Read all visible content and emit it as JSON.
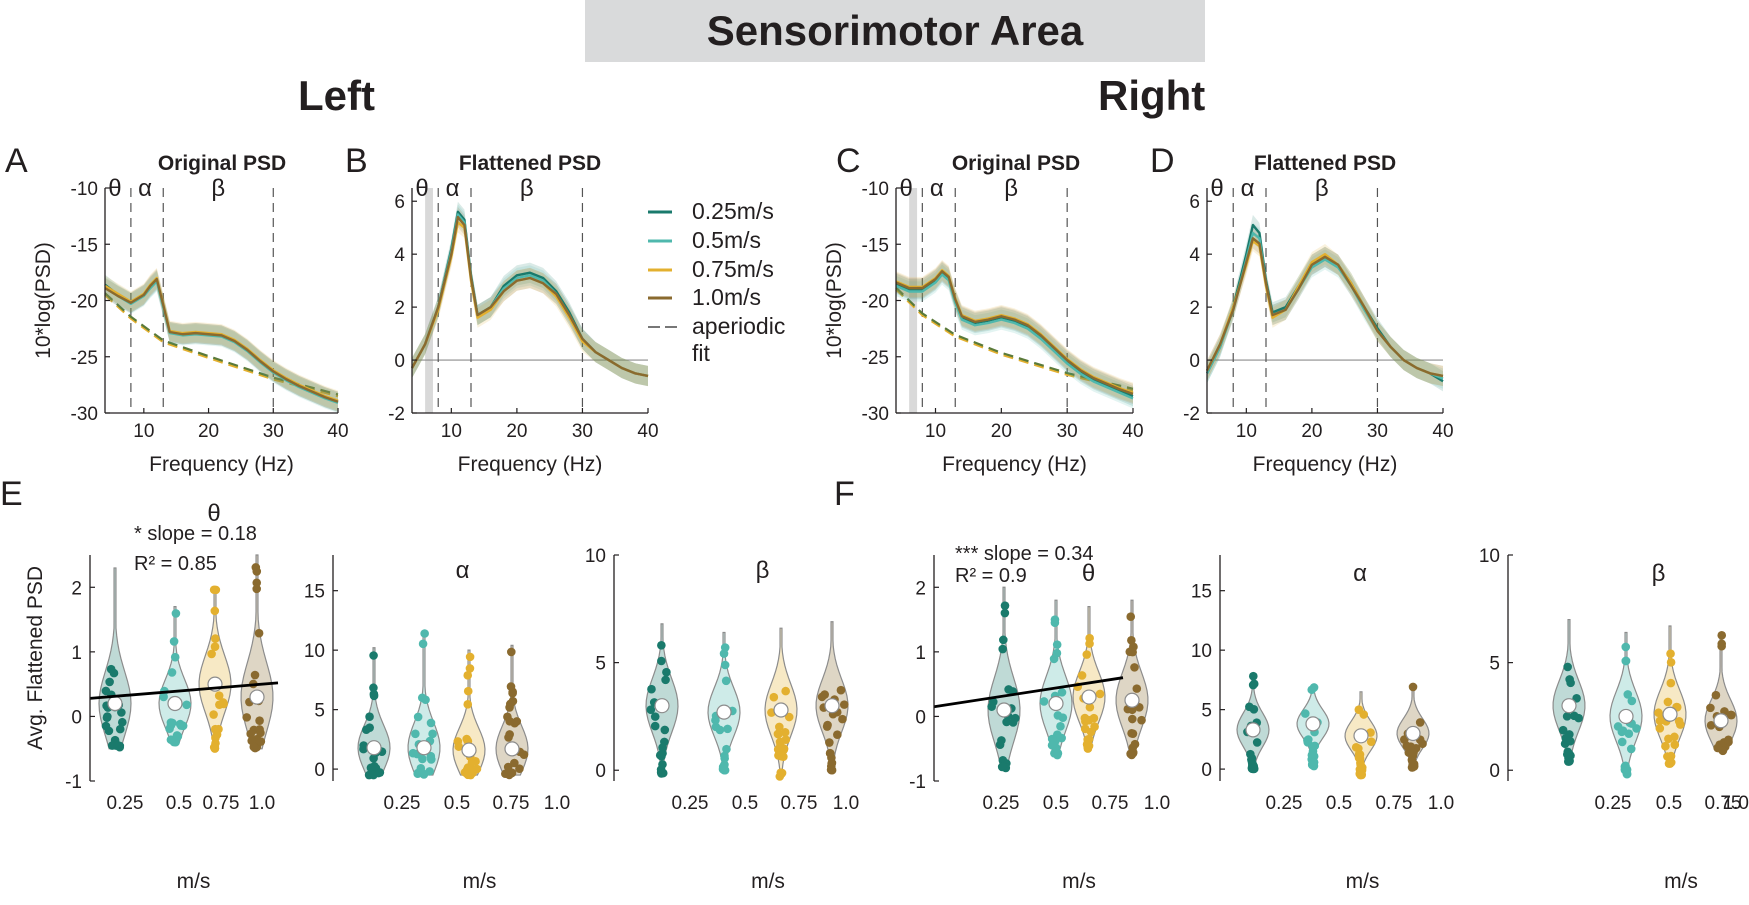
{
  "figure": {
    "title": "Sensorimotor Area",
    "left_heading": "Left",
    "right_heading": "Right"
  },
  "colors": {
    "0.25m/s": "#1a7a6c",
    "0.5m/s": "#4fb8ad",
    "0.75m/s": "#e3b02f",
    "1.0m/s": "#8a6a2f",
    "aperiodic": "#5a7a3a",
    "theta_shade": "#d9d9d9"
  },
  "legend": {
    "entries": [
      "0.25m/s",
      "0.5m/s",
      "0.75m/s",
      "1.0m/s"
    ],
    "aperiodic_line1": "aperiodic",
    "aperiodic_line2": "fit"
  },
  "chart_data": [
    {
      "id": "A",
      "type": "line",
      "title": "Original PSD",
      "xlabel": "Frequency (Hz)",
      "ylabel": "10*log(PSD)",
      "xlim": [
        4,
        40
      ],
      "ylim": [
        -30,
        -10
      ],
      "xticks": [
        10,
        20,
        30,
        40
      ],
      "yticks": [
        -30,
        -25,
        -20,
        -15,
        -10
      ],
      "band_lines": [
        8,
        13,
        30
      ],
      "band_labels": [
        "θ",
        "α",
        "β"
      ],
      "theta_shade": false,
      "zero_line": false,
      "x": [
        4,
        6,
        8,
        10,
        11,
        12,
        13,
        14,
        16,
        18,
        20,
        22,
        24,
        26,
        28,
        30,
        32,
        34,
        36,
        38,
        40
      ],
      "series": [
        {
          "name": "0.25m/s",
          "values": [
            -18.6,
            -19.5,
            -20.2,
            -19.5,
            -18.8,
            -18.2,
            -20.5,
            -22.8,
            -23.0,
            -22.9,
            -23.0,
            -23.1,
            -23.6,
            -24.4,
            -25.4,
            -26.3,
            -27.0,
            -27.6,
            -28.1,
            -28.6,
            -29.0
          ]
        },
        {
          "name": "0.5m/s",
          "values": [
            -18.8,
            -19.6,
            -20.3,
            -19.6,
            -18.9,
            -18.3,
            -20.6,
            -22.9,
            -23.1,
            -23.0,
            -23.1,
            -23.2,
            -23.7,
            -24.5,
            -25.5,
            -26.4,
            -27.1,
            -27.7,
            -28.2,
            -28.7,
            -29.1
          ]
        },
        {
          "name": "0.75m/s",
          "values": [
            -18.7,
            -19.4,
            -20.1,
            -19.4,
            -18.6,
            -18.0,
            -20.3,
            -22.7,
            -22.9,
            -22.8,
            -22.9,
            -23.0,
            -23.5,
            -24.3,
            -25.3,
            -26.2,
            -26.9,
            -27.5,
            -28.0,
            -28.5,
            -28.9
          ]
        },
        {
          "name": "1.0m/s",
          "values": [
            -18.9,
            -19.6,
            -20.2,
            -19.5,
            -18.7,
            -18.1,
            -20.4,
            -22.8,
            -23.0,
            -22.9,
            -23.0,
            -23.1,
            -23.6,
            -24.4,
            -25.4,
            -26.3,
            -27.0,
            -27.6,
            -28.1,
            -28.6,
            -29.0
          ]
        }
      ],
      "aperiodic": {
        "x": [
          4,
          8,
          13,
          20,
          30,
          40
        ],
        "values": [
          -19.5,
          -21.6,
          -23.7,
          -25.1,
          -27.0,
          -28.5
        ]
      }
    },
    {
      "id": "B",
      "type": "line",
      "title": "Flattened PSD",
      "xlabel": "Frequency (Hz)",
      "ylabel": "",
      "xlim": [
        4,
        40
      ],
      "ylim": [
        -2,
        6.5
      ],
      "xticks": [
        10,
        20,
        30,
        40
      ],
      "yticks": [
        -2,
        0,
        2,
        4,
        6
      ],
      "band_lines": [
        8,
        13,
        30
      ],
      "band_labels": [
        "θ",
        "α",
        "β"
      ],
      "theta_shade": true,
      "zero_line": true,
      "x": [
        4,
        6,
        8,
        10,
        11,
        12,
        13,
        14,
        16,
        18,
        20,
        22,
        24,
        26,
        28,
        30,
        32,
        34,
        36,
        38,
        40
      ],
      "series": [
        {
          "name": "0.25m/s",
          "values": [
            -0.3,
            0.6,
            2.0,
            4.2,
            5.6,
            5.3,
            3.2,
            1.7,
            2.0,
            2.8,
            3.2,
            3.3,
            3.1,
            2.6,
            1.8,
            0.8,
            0.3,
            0.0,
            -0.3,
            -0.5,
            -0.6
          ]
        },
        {
          "name": "0.5m/s",
          "values": [
            -0.3,
            0.6,
            2.0,
            4.1,
            5.5,
            5.2,
            3.1,
            1.7,
            2.0,
            2.7,
            3.1,
            3.2,
            3.0,
            2.5,
            1.7,
            0.8,
            0.3,
            0.0,
            -0.3,
            -0.5,
            -0.6
          ]
        },
        {
          "name": "0.75m/s",
          "values": [
            -0.3,
            0.6,
            1.9,
            3.9,
            5.2,
            5.0,
            3.0,
            1.6,
            1.9,
            2.6,
            3.0,
            3.1,
            2.9,
            2.4,
            1.6,
            0.7,
            0.3,
            0.0,
            -0.3,
            -0.5,
            -0.6
          ]
        },
        {
          "name": "1.0m/s",
          "values": [
            -0.3,
            0.6,
            2.0,
            4.0,
            5.4,
            5.1,
            3.1,
            1.7,
            2.0,
            2.6,
            3.0,
            3.1,
            2.9,
            2.5,
            1.7,
            0.8,
            0.3,
            0.0,
            -0.3,
            -0.5,
            -0.6
          ]
        }
      ]
    },
    {
      "id": "C",
      "type": "line",
      "title": "Original PSD",
      "xlabel": "Frequency (Hz)",
      "ylabel": "10*log(PSD)",
      "xlim": [
        4,
        40
      ],
      "ylim": [
        -30,
        -10
      ],
      "xticks": [
        10,
        20,
        30,
        40
      ],
      "yticks": [
        -30,
        -25,
        -20,
        -15,
        -10
      ],
      "band_lines": [
        8,
        13,
        30
      ],
      "band_labels": [
        "θ",
        "α",
        "β"
      ],
      "theta_shade": true,
      "zero_line": false,
      "x": [
        4,
        6,
        8,
        10,
        11,
        12,
        13,
        14,
        16,
        18,
        20,
        22,
        24,
        26,
        28,
        30,
        32,
        34,
        36,
        38,
        40
      ],
      "series": [
        {
          "name": "0.25m/s",
          "values": [
            -18.5,
            -19.0,
            -19.0,
            -18.2,
            -17.5,
            -18.0,
            -20.0,
            -21.5,
            -22.0,
            -21.8,
            -21.5,
            -21.8,
            -22.3,
            -23.2,
            -24.3,
            -25.4,
            -26.3,
            -27.0,
            -27.5,
            -28.0,
            -28.5
          ]
        },
        {
          "name": "0.5m/s",
          "values": [
            -18.7,
            -19.2,
            -19.2,
            -18.4,
            -17.7,
            -18.2,
            -20.2,
            -21.7,
            -22.2,
            -22.0,
            -21.7,
            -22.0,
            -22.5,
            -23.4,
            -24.5,
            -25.6,
            -26.5,
            -27.2,
            -27.7,
            -28.2,
            -28.7
          ]
        },
        {
          "name": "0.75m/s",
          "values": [
            -18.3,
            -18.8,
            -18.8,
            -18.0,
            -17.3,
            -17.8,
            -19.8,
            -21.3,
            -21.8,
            -21.6,
            -21.3,
            -21.6,
            -22.1,
            -23.0,
            -24.1,
            -25.2,
            -26.1,
            -26.8,
            -27.3,
            -27.8,
            -28.2
          ]
        },
        {
          "name": "1.0m/s",
          "values": [
            -18.4,
            -18.9,
            -18.9,
            -18.1,
            -17.4,
            -17.9,
            -19.9,
            -21.4,
            -21.9,
            -21.7,
            -21.4,
            -21.7,
            -22.2,
            -23.1,
            -24.2,
            -25.3,
            -26.2,
            -26.9,
            -27.4,
            -27.9,
            -28.3
          ]
        }
      ],
      "aperiodic": {
        "x": [
          4,
          8,
          13,
          20,
          30,
          40
        ],
        "values": [
          -19.0,
          -21.3,
          -23.2,
          -24.8,
          -26.6,
          -28.0
        ]
      }
    },
    {
      "id": "D",
      "type": "line",
      "title": "Flattened PSD",
      "xlabel": "Frequency (Hz)",
      "ylabel": "",
      "xlim": [
        4,
        40
      ],
      "ylim": [
        -2,
        6.5
      ],
      "xticks": [
        10,
        20,
        30,
        40
      ],
      "yticks": [
        -2,
        0,
        2,
        4,
        6
      ],
      "band_lines": [
        8,
        13,
        30
      ],
      "band_labels": [
        "θ",
        "α",
        "β"
      ],
      "theta_shade": false,
      "zero_line": true,
      "x": [
        4,
        6,
        8,
        10,
        11,
        12,
        13,
        14,
        16,
        18,
        20,
        22,
        24,
        26,
        28,
        30,
        32,
        34,
        36,
        38,
        40
      ],
      "series": [
        {
          "name": "0.25m/s",
          "values": [
            -0.5,
            0.5,
            2.0,
            4.0,
            5.1,
            4.8,
            3.0,
            1.8,
            2.0,
            2.8,
            3.6,
            3.9,
            3.6,
            2.9,
            2.0,
            1.2,
            0.5,
            0.0,
            -0.3,
            -0.5,
            -0.8
          ]
        },
        {
          "name": "0.5m/s",
          "values": [
            -0.5,
            0.5,
            1.9,
            3.8,
            4.8,
            4.6,
            2.9,
            1.7,
            1.9,
            2.7,
            3.5,
            3.8,
            3.5,
            2.8,
            1.9,
            1.1,
            0.5,
            0.0,
            -0.3,
            -0.5,
            -0.7
          ]
        },
        {
          "name": "0.75m/s",
          "values": [
            -0.4,
            0.6,
            2.0,
            3.6,
            4.5,
            4.3,
            2.8,
            1.6,
            1.9,
            2.8,
            3.7,
            4.0,
            3.6,
            2.9,
            2.0,
            1.1,
            0.5,
            0.0,
            -0.3,
            -0.5,
            -0.6
          ]
        },
        {
          "name": "1.0m/s",
          "values": [
            -0.4,
            0.6,
            1.9,
            3.7,
            4.6,
            4.4,
            2.9,
            1.7,
            1.9,
            2.7,
            3.6,
            3.9,
            3.6,
            2.8,
            2.0,
            1.1,
            0.5,
            0.0,
            -0.3,
            -0.5,
            -0.6
          ]
        }
      ]
    },
    {
      "id": "E-theta",
      "type": "violin",
      "title": "θ",
      "ylabel": "Avg. Flattened PSD",
      "xlabel": "m/s",
      "categories": [
        "0.25",
        "0.5",
        "0.75",
        "1.0"
      ],
      "ylim": [
        -1,
        2.5
      ],
      "yticks": [
        -1,
        0,
        1,
        2
      ],
      "medians": [
        0.2,
        0.2,
        0.5,
        0.3
      ],
      "ranges": [
        [
          -0.5,
          2.3
        ],
        [
          -0.4,
          1.7
        ],
        [
          -0.5,
          2.0
        ],
        [
          -0.5,
          2.5
        ]
      ],
      "regression": {
        "y_start": 0.28,
        "y_end": 0.52
      },
      "annotation_line1": "* slope = 0.18",
      "annotation_r2": "R² = 0.85"
    },
    {
      "id": "E-alpha",
      "type": "violin",
      "title": "α",
      "ylabel": "",
      "xlabel": "m/s",
      "categories": [
        "0.25",
        "0.5",
        "0.75",
        "1.0"
      ],
      "ylim": [
        -1,
        18
      ],
      "yticks": [
        0,
        5,
        10,
        15
      ],
      "medians": [
        1.8,
        1.8,
        1.6,
        1.7
      ],
      "ranges": [
        [
          -0.5,
          10.2
        ],
        [
          -0.5,
          11.5
        ],
        [
          -0.5,
          10.0
        ],
        [
          -0.5,
          10.4
        ]
      ]
    },
    {
      "id": "E-beta",
      "type": "violin",
      "title": "β",
      "ylabel": "",
      "xlabel": "m/s",
      "categories": [
        "0.25",
        "0.5",
        "0.75",
        "1.0"
      ],
      "ylim": [
        -0.5,
        10
      ],
      "yticks": [
        0,
        5,
        10
      ],
      "medians": [
        3.0,
        2.7,
        2.8,
        3.0
      ],
      "ranges": [
        [
          -0.3,
          6.8
        ],
        [
          0.0,
          6.4
        ],
        [
          -0.3,
          6.6
        ],
        [
          0.0,
          6.9
        ]
      ]
    },
    {
      "id": "F-theta",
      "type": "violin",
      "title": "θ",
      "ylabel": "",
      "xlabel": "m/s",
      "categories": [
        "0.25",
        "0.5",
        "0.75",
        "1.0"
      ],
      "ylim": [
        -1,
        2.5
      ],
      "yticks": [
        -1,
        0,
        1,
        2
      ],
      "medians": [
        0.1,
        0.2,
        0.3,
        0.25
      ],
      "ranges": [
        [
          -0.8,
          2.0
        ],
        [
          -0.6,
          1.8
        ],
        [
          -0.5,
          1.7
        ],
        [
          -0.6,
          1.8
        ]
      ],
      "regression": {
        "y_start": 0.15,
        "y_end": 0.6
      },
      "annotation_line1": "*** slope = 0.34",
      "annotation_r2": "R² = 0.9"
    },
    {
      "id": "F-alpha",
      "type": "violin",
      "title": "α",
      "ylabel": "",
      "xlabel": "m/s",
      "categories": [
        "0.25",
        "0.5",
        "0.75",
        "1.0"
      ],
      "ylim": [
        -1,
        18
      ],
      "yticks": [
        0,
        5,
        10,
        15
      ],
      "medians": [
        3.3,
        3.8,
        2.8,
        3.0
      ],
      "ranges": [
        [
          0.0,
          8.0
        ],
        [
          0.2,
          7.0
        ],
        [
          -0.5,
          6.5
        ],
        [
          0.0,
          7.0
        ]
      ]
    },
    {
      "id": "F-beta",
      "type": "violin",
      "title": "β",
      "ylabel": "",
      "xlabel": "m/s",
      "categories": [
        "0.25",
        "0.5",
        "0.75",
        "1.0"
      ],
      "ylim": [
        -0.5,
        10
      ],
      "yticks": [
        0,
        5,
        10
      ],
      "medians": [
        3.0,
        2.5,
        2.6,
        2.3
      ],
      "ranges": [
        [
          0.4,
          7.0
        ],
        [
          -0.2,
          6.4
        ],
        [
          0.3,
          6.7
        ],
        [
          0.9,
          6.4
        ]
      ]
    }
  ]
}
